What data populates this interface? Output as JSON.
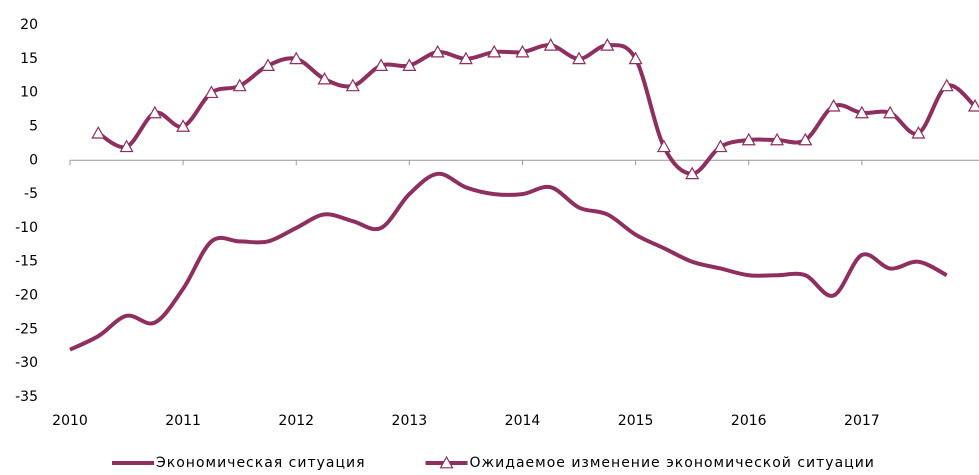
{
  "chart_data": {
    "type": "line",
    "x": [
      2010,
      2010.25,
      2010.5,
      2010.75,
      2011,
      2011.25,
      2011.5,
      2011.75,
      2012,
      2012.25,
      2012.5,
      2012.75,
      2013,
      2013.25,
      2013.5,
      2013.75,
      2014,
      2014.25,
      2014.5,
      2014.75,
      2015,
      2015.25,
      2015.5,
      2015.75,
      2016,
      2016.25,
      2016.5,
      2016.75,
      2017,
      2017.25,
      2017.5,
      2017.75,
      2018
    ],
    "series": [
      {
        "name": "Экономическая ситуация",
        "color": "#8e2f5f",
        "marker": "none",
        "values": [
          -28,
          -26,
          -23,
          -24,
          -19,
          -12,
          -12,
          -12,
          -10,
          -8,
          -9,
          -10,
          -5,
          -2,
          -4,
          -5,
          -5,
          -4,
          -7,
          -8,
          -11,
          -13,
          -15,
          -16,
          -17,
          -17,
          -17,
          -20,
          -14,
          -16,
          -15,
          -17,
          null
        ]
      },
      {
        "name": "Ожидаемое изменение экономической ситуации",
        "color": "#8e2f5f",
        "marker": "triangle",
        "values": [
          null,
          4,
          2,
          7,
          5,
          10,
          11,
          14,
          15,
          12,
          11,
          14,
          14,
          16,
          15,
          16,
          16,
          17,
          15,
          17,
          15,
          2,
          -2,
          2,
          3,
          3,
          3,
          8,
          7,
          7,
          4,
          11,
          8
        ]
      }
    ],
    "xlim": [
      2010,
      2018
    ],
    "xticks": [
      2010,
      2011,
      2012,
      2013,
      2014,
      2015,
      2016,
      2017
    ],
    "ylim": [
      -35,
      20
    ],
    "yticks": [
      -35,
      -30,
      -25,
      -20,
      -15,
      -10,
      -5,
      0,
      5,
      10,
      15,
      20
    ],
    "grid": false,
    "legend": "bottom"
  }
}
